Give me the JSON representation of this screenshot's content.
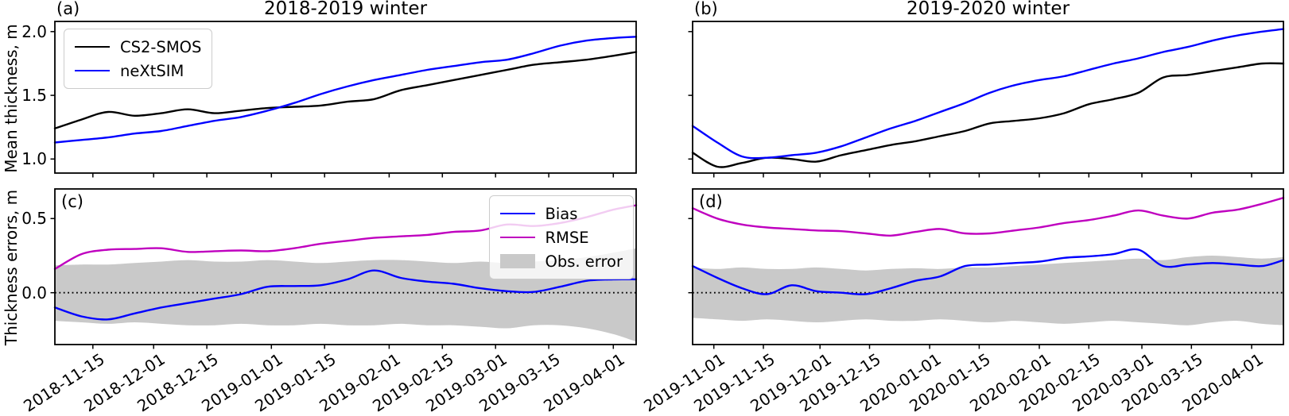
{
  "figure": {
    "description": "Four-panel time-series figure comparing sea-ice mean thickness and thickness errors for two winters",
    "colors": {
      "cs2smos": "#000000",
      "nextsim": "#0000ff",
      "bias": "#0000ff",
      "rmse": "#bf00bf",
      "obs_error_band": "#c9c9c9",
      "zero_line": "#000000",
      "axes": "#000000"
    }
  },
  "chart_data": [
    {
      "id": "a",
      "label": "(a)",
      "type": "line",
      "title": "2018-2019 winter",
      "ylabel": "Mean thickness, m",
      "ylim": [
        0.89,
        2.08
      ],
      "yticks": [
        2.0,
        1.5,
        1.0
      ],
      "ytick_labels": [
        "2.0",
        "1.5",
        "1.0"
      ],
      "xlim": [
        "2018-11-05",
        "2019-04-07"
      ],
      "xticks": [
        "2018-11-15",
        "2018-12-01",
        "2018-12-15",
        "2019-01-01",
        "2019-01-15",
        "2019-02-01",
        "2019-02-15",
        "2019-03-01",
        "2019-03-15",
        "2019-04-01"
      ],
      "grid": false,
      "x": [
        "2018-11-05",
        "2018-11-12",
        "2018-11-19",
        "2018-11-26",
        "2018-12-03",
        "2018-12-10",
        "2018-12-17",
        "2018-12-24",
        "2018-12-31",
        "2019-01-07",
        "2019-01-14",
        "2019-01-21",
        "2019-01-28",
        "2019-02-04",
        "2019-02-11",
        "2019-02-18",
        "2019-02-25",
        "2019-03-04",
        "2019-03-11",
        "2019-03-18",
        "2019-03-25",
        "2019-04-01",
        "2019-04-07"
      ],
      "series": [
        {
          "name": "CS2-SMOS",
          "color": "#000000",
          "values": [
            1.24,
            1.31,
            1.37,
            1.34,
            1.36,
            1.39,
            1.36,
            1.38,
            1.4,
            1.41,
            1.42,
            1.45,
            1.47,
            1.54,
            1.58,
            1.62,
            1.66,
            1.7,
            1.74,
            1.76,
            1.78,
            1.81,
            1.84
          ]
        },
        {
          "name": "neXtSIM",
          "color": "#0000ff",
          "values": [
            1.13,
            1.15,
            1.17,
            1.2,
            1.22,
            1.26,
            1.3,
            1.33,
            1.38,
            1.44,
            1.51,
            1.57,
            1.62,
            1.66,
            1.7,
            1.73,
            1.76,
            1.78,
            1.83,
            1.89,
            1.93,
            1.95,
            1.96
          ]
        }
      ],
      "legend": {
        "location": "upper left",
        "entries": [
          "CS2-SMOS",
          "neXtSIM"
        ]
      }
    },
    {
      "id": "b",
      "label": "(b)",
      "type": "line",
      "title": "2019-2020 winter",
      "ylabel": "",
      "ylim": [
        0.89,
        2.08
      ],
      "yticks": [
        2.0,
        1.5,
        1.0
      ],
      "ytick_labels": [],
      "xlim": [
        "2019-10-26",
        "2020-04-10"
      ],
      "xticks": [
        "2019-11-01",
        "2019-11-15",
        "2019-12-01",
        "2019-12-15",
        "2020-01-01",
        "2020-01-15",
        "2020-02-01",
        "2020-02-15",
        "2020-03-01",
        "2020-03-15",
        "2020-04-01"
      ],
      "grid": false,
      "x": [
        "2019-10-26",
        "2019-11-02",
        "2019-11-09",
        "2019-11-16",
        "2019-11-23",
        "2019-11-30",
        "2019-12-07",
        "2019-12-14",
        "2019-12-21",
        "2019-12-28",
        "2020-01-04",
        "2020-01-11",
        "2020-01-18",
        "2020-01-25",
        "2020-02-01",
        "2020-02-08",
        "2020-02-15",
        "2020-02-22",
        "2020-02-29",
        "2020-03-07",
        "2020-03-14",
        "2020-03-21",
        "2020-03-28",
        "2020-04-04",
        "2020-04-10"
      ],
      "series": [
        {
          "name": "CS2-SMOS",
          "color": "#000000",
          "values": [
            1.05,
            0.94,
            0.97,
            1.01,
            1.0,
            0.98,
            1.03,
            1.07,
            1.11,
            1.14,
            1.18,
            1.22,
            1.28,
            1.3,
            1.32,
            1.36,
            1.43,
            1.47,
            1.52,
            1.64,
            1.66,
            1.69,
            1.72,
            1.75,
            1.75
          ]
        },
        {
          "name": "neXtSIM",
          "color": "#0000ff",
          "values": [
            1.26,
            1.13,
            1.02,
            1.01,
            1.03,
            1.05,
            1.1,
            1.17,
            1.24,
            1.3,
            1.37,
            1.44,
            1.52,
            1.58,
            1.62,
            1.65,
            1.7,
            1.75,
            1.79,
            1.84,
            1.88,
            1.93,
            1.97,
            2.0,
            2.02
          ]
        }
      ],
      "legend": null
    },
    {
      "id": "c",
      "label": "(c)",
      "type": "line",
      "title": "",
      "ylabel": "Thickness errors, m",
      "ylim": [
        -0.35,
        0.7
      ],
      "yticks": [
        0.5,
        0.0
      ],
      "ytick_labels": [
        "0.5",
        "0.0"
      ],
      "zero_line": true,
      "xlim": [
        "2018-11-05",
        "2019-04-07"
      ],
      "xticks": [
        "2018-11-15",
        "2018-12-01",
        "2018-12-15",
        "2019-01-01",
        "2019-01-15",
        "2019-02-01",
        "2019-02-15",
        "2019-03-01",
        "2019-03-15",
        "2019-04-01"
      ],
      "grid": false,
      "x": [
        "2018-11-05",
        "2018-11-12",
        "2018-11-19",
        "2018-11-26",
        "2018-12-03",
        "2018-12-10",
        "2018-12-17",
        "2018-12-24",
        "2018-12-31",
        "2019-01-07",
        "2019-01-14",
        "2019-01-21",
        "2019-01-28",
        "2019-02-04",
        "2019-02-11",
        "2019-02-18",
        "2019-02-25",
        "2019-03-04",
        "2019-03-11",
        "2019-03-18",
        "2019-03-25",
        "2019-04-01",
        "2019-04-07"
      ],
      "band": {
        "name": "Obs. error",
        "color": "#c9c9c9",
        "upper": [
          0.185,
          0.19,
          0.19,
          0.2,
          0.21,
          0.22,
          0.21,
          0.21,
          0.22,
          0.21,
          0.2,
          0.21,
          0.22,
          0.22,
          0.21,
          0.2,
          0.21,
          0.2,
          0.21,
          0.22,
          0.24,
          0.27,
          0.3
        ],
        "lower": [
          -0.19,
          -0.2,
          -0.21,
          -0.2,
          -0.21,
          -0.22,
          -0.22,
          -0.21,
          -0.22,
          -0.22,
          -0.21,
          -0.22,
          -0.22,
          -0.21,
          -0.22,
          -0.22,
          -0.23,
          -0.24,
          -0.22,
          -0.22,
          -0.24,
          -0.28,
          -0.33
        ]
      },
      "series": [
        {
          "name": "Bias",
          "color": "#0000ff",
          "values": [
            -0.1,
            -0.16,
            -0.18,
            -0.14,
            -0.1,
            -0.07,
            -0.04,
            -0.01,
            0.04,
            0.045,
            0.05,
            0.09,
            0.15,
            0.1,
            0.075,
            0.06,
            0.03,
            0.01,
            0.005,
            0.04,
            0.08,
            0.09,
            0.09
          ]
        },
        {
          "name": "RMSE",
          "color": "#bf00bf",
          "values": [
            0.16,
            0.26,
            0.29,
            0.295,
            0.3,
            0.275,
            0.28,
            0.285,
            0.28,
            0.3,
            0.33,
            0.35,
            0.37,
            0.38,
            0.39,
            0.41,
            0.42,
            0.46,
            0.45,
            0.47,
            0.51,
            0.56,
            0.59
          ]
        }
      ],
      "legend": {
        "location": "upper right",
        "entries": [
          "Bias",
          "RMSE",
          "Obs. error"
        ]
      }
    },
    {
      "id": "d",
      "label": "(d)",
      "type": "line",
      "title": "",
      "ylabel": "",
      "ylim": [
        -0.35,
        0.7
      ],
      "yticks": [
        0.5,
        0.0
      ],
      "ytick_labels": [],
      "zero_line": true,
      "xlim": [
        "2019-10-26",
        "2020-04-10"
      ],
      "xticks": [
        "2019-11-01",
        "2019-11-15",
        "2019-12-01",
        "2019-12-15",
        "2020-01-01",
        "2020-01-15",
        "2020-02-01",
        "2020-02-15",
        "2020-03-01",
        "2020-03-15",
        "2020-04-01"
      ],
      "grid": false,
      "x": [
        "2019-10-26",
        "2019-11-02",
        "2019-11-09",
        "2019-11-16",
        "2019-11-23",
        "2019-11-30",
        "2019-12-07",
        "2019-12-14",
        "2019-12-21",
        "2019-12-28",
        "2020-01-04",
        "2020-01-11",
        "2020-01-18",
        "2020-01-25",
        "2020-02-01",
        "2020-02-08",
        "2020-02-15",
        "2020-02-22",
        "2020-02-29",
        "2020-03-07",
        "2020-03-14",
        "2020-03-21",
        "2020-03-28",
        "2020-04-04",
        "2020-04-10"
      ],
      "band": {
        "name": "Obs. error",
        "color": "#c9c9c9",
        "upper": [
          0.17,
          0.16,
          0.17,
          0.16,
          0.16,
          0.17,
          0.16,
          0.15,
          0.16,
          0.165,
          0.16,
          0.17,
          0.17,
          0.18,
          0.19,
          0.2,
          0.21,
          0.22,
          0.23,
          0.22,
          0.24,
          0.25,
          0.24,
          0.23,
          0.24
        ],
        "lower": [
          -0.17,
          -0.18,
          -0.19,
          -0.18,
          -0.19,
          -0.2,
          -0.19,
          -0.18,
          -0.19,
          -0.19,
          -0.18,
          -0.19,
          -0.2,
          -0.19,
          -0.2,
          -0.21,
          -0.2,
          -0.19,
          -0.2,
          -0.21,
          -0.22,
          -0.2,
          -0.19,
          -0.21,
          -0.22
        ]
      },
      "series": [
        {
          "name": "Bias",
          "color": "#0000ff",
          "values": [
            0.18,
            0.1,
            0.03,
            -0.01,
            0.05,
            0.01,
            0.0,
            -0.01,
            0.03,
            0.08,
            0.11,
            0.18,
            0.19,
            0.2,
            0.21,
            0.235,
            0.245,
            0.26,
            0.29,
            0.18,
            0.19,
            0.2,
            0.19,
            0.18,
            0.22
          ]
        },
        {
          "name": "RMSE",
          "color": "#bf00bf",
          "values": [
            0.57,
            0.5,
            0.46,
            0.44,
            0.43,
            0.42,
            0.415,
            0.4,
            0.385,
            0.41,
            0.43,
            0.4,
            0.4,
            0.42,
            0.44,
            0.47,
            0.49,
            0.52,
            0.555,
            0.52,
            0.5,
            0.54,
            0.56,
            0.6,
            0.64
          ]
        }
      ],
      "legend": null
    }
  ]
}
